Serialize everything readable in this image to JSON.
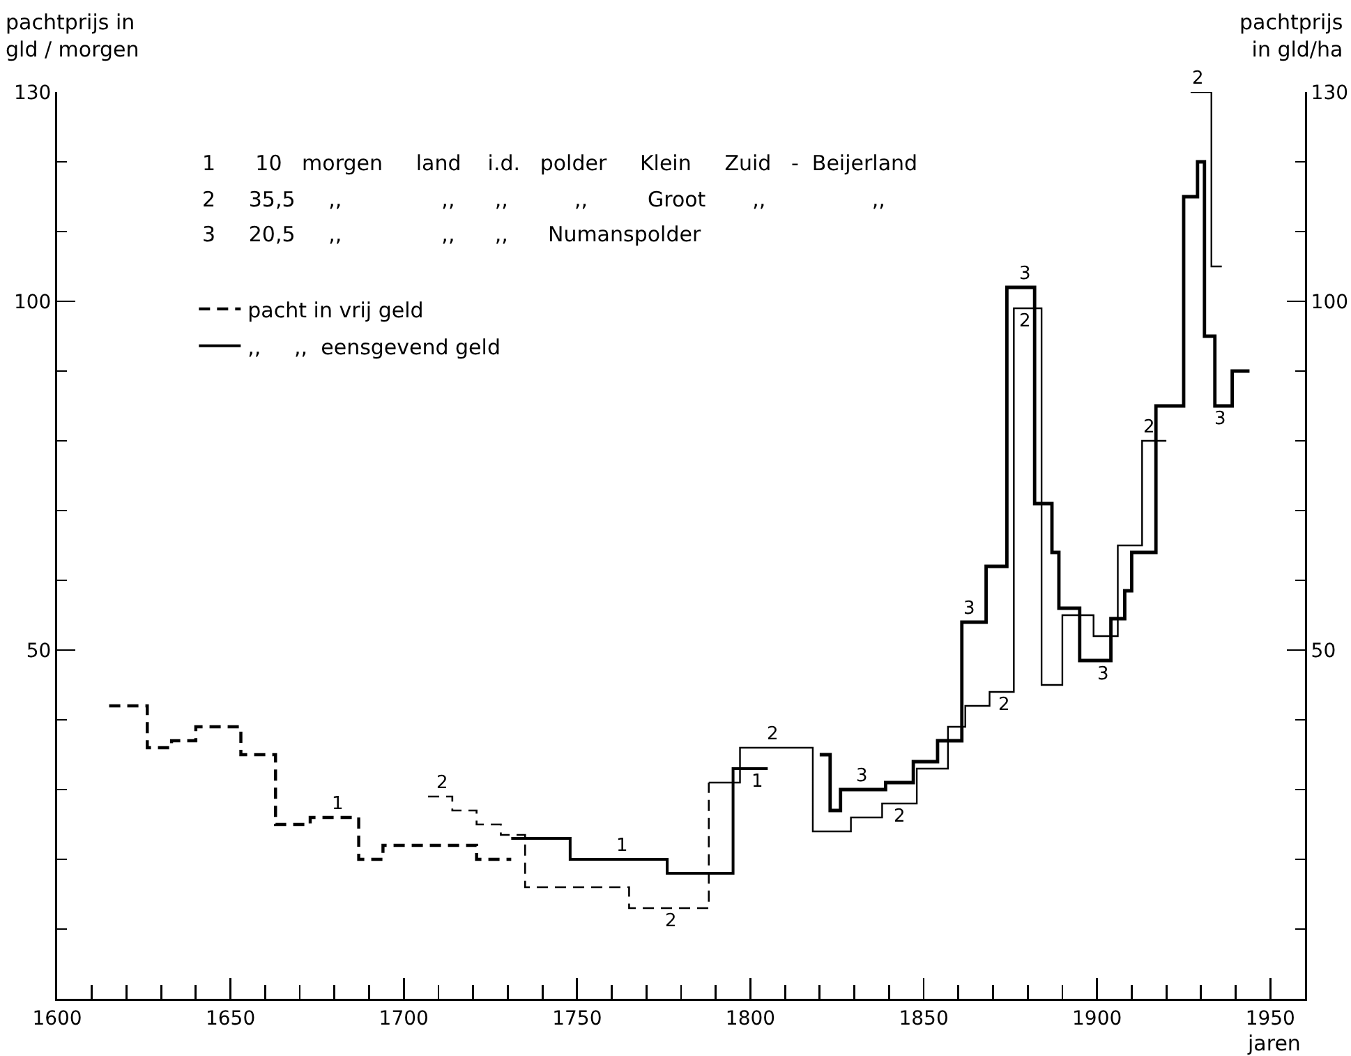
{
  "chart_data": {
    "type": "step",
    "xlabel": "jaren",
    "ylabel": "pachtprijs in\ngld / morgen",
    "y2label": "pachtprijs\nin gld/ha",
    "xlim": [
      1600,
      1960
    ],
    "xticks": [
      1600,
      {
        "value": 1610,
        "label": null
      },
      {
        "value": 1620,
        "label": null
      },
      {
        "value": 1630,
        "label": null
      },
      {
        "value": 1640,
        "label": null
      },
      1650,
      {
        "value": 1660,
        "label": null
      },
      {
        "value": 1670,
        "label": null
      },
      {
        "value": 1680,
        "label": null
      },
      {
        "value": 1690,
        "label": null
      },
      1700,
      {
        "value": 1710,
        "label": null
      },
      {
        "value": 1720,
        "label": null
      },
      {
        "value": 1730,
        "label": null
      },
      {
        "value": 1740,
        "label": null
      },
      1750,
      {
        "value": 1760,
        "label": null
      },
      {
        "value": 1770,
        "label": null
      },
      {
        "value": 1780,
        "label": null
      },
      {
        "value": 1790,
        "label": null
      },
      1800,
      {
        "value": 1810,
        "label": null
      },
      {
        "value": 1820,
        "label": null
      },
      {
        "value": 1830,
        "label": null
      },
      {
        "value": 1840,
        "label": null
      },
      1850,
      {
        "value": 1860,
        "label": null
      },
      {
        "value": 1870,
        "label": null
      },
      {
        "value": 1880,
        "label": null
      },
      {
        "value": 1890,
        "label": null
      },
      1900,
      {
        "value": 1910,
        "label": null
      },
      {
        "value": 1920,
        "label": null
      },
      {
        "value": 1930,
        "label": null
      },
      {
        "value": 1940,
        "label": null
      },
      1950
    ],
    "ylim": [
      0,
      130
    ],
    "yticks": [
      {
        "value": 10,
        "label": null
      },
      {
        "value": 20,
        "label": null
      },
      {
        "value": 30,
        "label": null
      },
      {
        "value": 40,
        "label": null
      },
      50,
      {
        "value": 60,
        "label": null
      },
      {
        "value": 70,
        "label": null
      },
      {
        "value": 80,
        "label": null
      },
      {
        "value": 90,
        "label": null
      },
      100,
      {
        "value": 110,
        "label": null
      },
      {
        "value": 120,
        "label": null
      },
      130
    ],
    "y2lim": [
      0,
      130
    ],
    "y2ticks": [
      {
        "value": 10,
        "label": null
      },
      {
        "value": 20,
        "label": null
      },
      {
        "value": 30,
        "label": null
      },
      {
        "value": 40,
        "label": null
      },
      50,
      {
        "value": 60,
        "label": null
      },
      {
        "value": 70,
        "label": null
      },
      {
        "value": 80,
        "label": null
      },
      {
        "value": 90,
        "label": null
      },
      100,
      {
        "value": 110,
        "label": null
      },
      {
        "value": 120,
        "label": null
      },
      130
    ],
    "legend": "top left",
    "line_style": "solid",
    "series": [
      {
        "name": "pacht in vrij geld",
        "color": "#000000",
        "line_style": "dashed",
        "x": [
          1615,
          1626,
          1633,
          1640,
          1653,
          1663,
          1673,
          1687,
          1694,
          1721,
          1731
        ],
        "values": [
          42,
          36,
          37,
          39,
          35,
          25,
          26,
          20,
          22,
          20,
          20
        ]
      },
      {
        "color": "#000000",
        "line_style": "dashed",
        "x": [
          1707,
          1714,
          1721,
          1728,
          1735,
          1765,
          1788
        ],
        "values": [
          29,
          27,
          25,
          23.5,
          16,
          13,
          31
        ]
      },
      {
        "name": ",,     ,,  eensgevend geld",
        "color": "#000000",
        "x": [
          1731,
          1748,
          1776,
          1795,
          1805
        ],
        "values": [
          23,
          20,
          18,
          33,
          33
        ]
      },
      {
        "color": "#000000",
        "x": [
          1788,
          1797,
          1818,
          1829,
          1838,
          1848,
          1857,
          1862,
          1869,
          1876,
          1884,
          1890,
          1899,
          1906,
          1913,
          1920,
          1921,
          1927,
          1933,
          1936
        ],
        "values": [
          31,
          36,
          24,
          26,
          28,
          33,
          39,
          42,
          44,
          99,
          45,
          55,
          52,
          65,
          80,
          80,
          null,
          130,
          105,
          105
        ]
      },
      {
        "color": "#000000",
        "x": [
          1820,
          1823,
          1826,
          1839,
          1847,
          1854,
          1861,
          1868,
          1874,
          1882,
          1887,
          1889,
          1895,
          1904,
          1908,
          1910,
          1917,
          1925,
          1929,
          1931,
          1934,
          1939,
          1944
        ],
        "values": [
          35,
          27,
          30,
          31,
          34,
          37,
          54,
          62,
          102,
          71,
          64,
          56,
          48.5,
          54.5,
          58.5,
          64,
          85,
          115,
          120,
          95,
          85,
          90,
          90
        ]
      }
    ],
    "annotations": [
      "1      10   morgen     land    i.d.   polder     Klein     Zuid   -  Beijerland",
      "2     35,5     ,,               ,,      ,,          ,,         Groot       ,,                ,,",
      "3     20,5     ,,               ,,      ,,      Numanspolder",
      {
        "text": "1",
        "x": 1681,
        "y": 26
      },
      {
        "text": "2",
        "x": 1711,
        "y": 29
      },
      {
        "text": "1",
        "x": 1763,
        "y": 20
      },
      {
        "text": "2",
        "x": 1777,
        "y": 13
      },
      {
        "text": "1",
        "x": 1802,
        "y": 33
      },
      {
        "text": "2",
        "x": 1806.5,
        "y": 36
      },
      {
        "text": "3",
        "x": 1832,
        "y": 30
      },
      {
        "text": "2",
        "x": 1843,
        "y": 28
      },
      {
        "text": "3",
        "x": 1863,
        "y": 54
      },
      {
        "text": "2",
        "x": 1873,
        "y": 44
      },
      {
        "text": "3",
        "x": 1879,
        "y": 102
      },
      {
        "text": "2",
        "x": 1879,
        "y": 99
      },
      {
        "text": "3",
        "x": 1901.5,
        "y": 48.5
      },
      {
        "text": "2",
        "x": 1915,
        "y": 80
      },
      {
        "text": "2",
        "x": 1929,
        "y": 130
      },
      {
        "text": "3",
        "x": 1935.5,
        "y": 85
      }
    ]
  }
}
